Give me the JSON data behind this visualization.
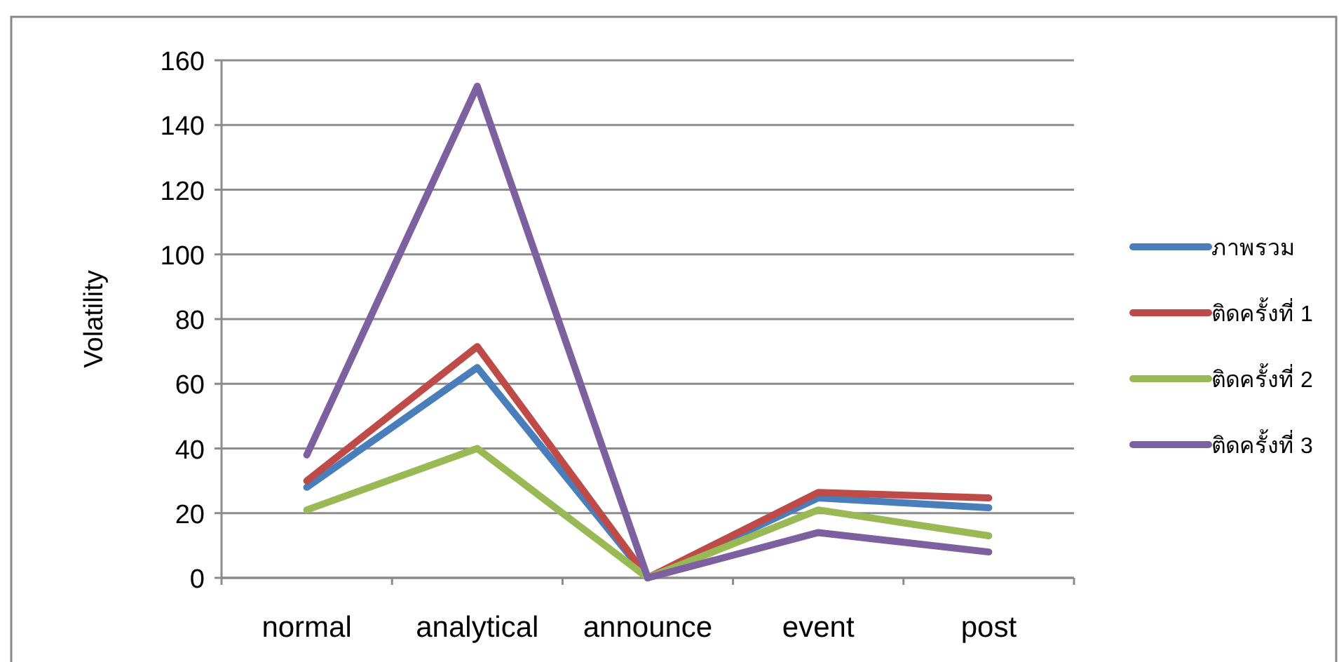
{
  "chart_data": {
    "type": "line",
    "ylabel": "Volatility",
    "categories": [
      "normal",
      "analytical",
      "announce",
      "event",
      "post"
    ],
    "series": [
      {
        "name": "ภาพรวม",
        "color": "#4a7ebb",
        "values": [
          28,
          65,
          0,
          24.7,
          21.7
        ]
      },
      {
        "name": "ติดครั้งที่ 1",
        "color": "#be4b48",
        "values": [
          30,
          71.5,
          0,
          26.4,
          24.7
        ]
      },
      {
        "name": "ติดครั้งที่ 2",
        "color": "#98b954",
        "values": [
          21,
          40,
          0,
          21,
          13
        ]
      },
      {
        "name": "ติดครั้งที่ 3",
        "color": "#7d60a0",
        "values": [
          38,
          152,
          0,
          14,
          8
        ]
      }
    ],
    "ylim": [
      0,
      160
    ],
    "yticks": [
      0,
      20,
      40,
      60,
      80,
      100,
      120,
      140,
      160
    ],
    "grid": "y",
    "legend": "right"
  }
}
